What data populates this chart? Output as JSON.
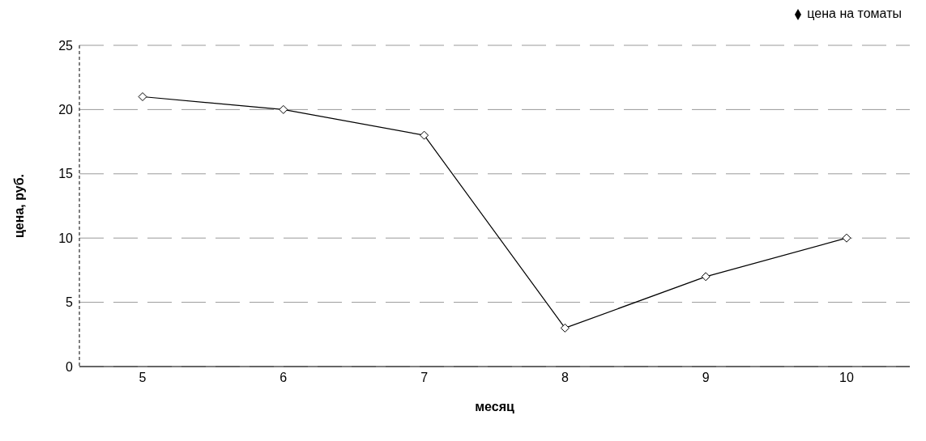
{
  "chart_data": {
    "type": "line",
    "xlabel": "месяц",
    "ylabel": "цена, руб.",
    "categories": [
      "5",
      "6",
      "7",
      "8",
      "9",
      "10"
    ],
    "series": [
      {
        "name": "цена на томаты",
        "color": "#000000",
        "values": [
          21,
          20,
          18,
          3,
          7,
          10
        ]
      }
    ],
    "ylim": [
      0,
      25
    ],
    "yticks": [
      0,
      5,
      10,
      15,
      20,
      25
    ],
    "grid": "y",
    "legend": "top right",
    "marker": "diamond"
  }
}
